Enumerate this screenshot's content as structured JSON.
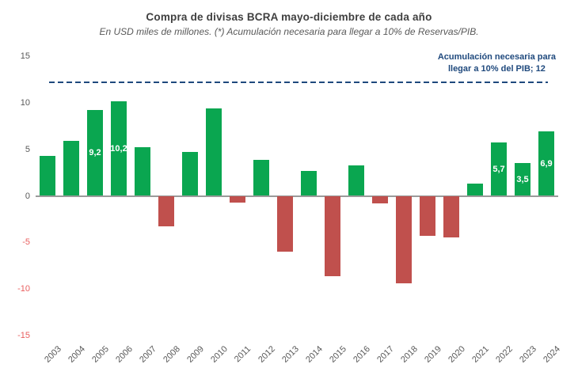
{
  "header": {
    "title": "Compra de divisas BCRA mayo-diciembre de cada año",
    "subtitle": "En USD miles de millones.  (*) Acumulación necesaria para llegar a 10% de Reservas/PIB."
  },
  "annotation": {
    "line1": "Acumulación necesaria para",
    "line2": "llegar a 10% del PIB; 12"
  },
  "chart_data": {
    "type": "bar",
    "title": "Compra de divisas BCRA mayo-diciembre de cada año",
    "subtitle": "En USD miles de millones.  (*) Acumulación necesaria para llegar a 10% de Reservas/PIB.",
    "categories": [
      "2003",
      "2004",
      "2005",
      "2006",
      "2007",
      "2008",
      "2009",
      "2010",
      "2011",
      "2012",
      "2013",
      "2014",
      "2015",
      "2016",
      "2017",
      "2018",
      "2019",
      "2020",
      "2021",
      "2022",
      "2023",
      "2024"
    ],
    "values": [
      4.3,
      5.9,
      9.2,
      10.2,
      5.2,
      -3.3,
      4.7,
      9.4,
      -0.7,
      3.9,
      -6.0,
      2.7,
      -8.6,
      3.3,
      -0.8,
      -9.4,
      -4.3,
      -4.5,
      1.3,
      5.7,
      3.5,
      6.9
    ],
    "data_labels": {
      "2005": "9,2",
      "2006": "10,2",
      "2022": "5,7",
      "2023": "3,5",
      "2024": "6,9"
    },
    "reference_line": {
      "value": 12,
      "label": "Acumulación necesaria para llegar a 10% del PIB; 12",
      "style": "dashed",
      "color": "#1F497D"
    },
    "yticks": [
      15,
      10,
      5,
      0,
      -5,
      -10,
      -15
    ],
    "ylim": [
      -15,
      15
    ],
    "xlabel": "",
    "ylabel": "",
    "grid": false,
    "legend": false,
    "positive_color": "#0AA650",
    "negative_color": "#C0504D",
    "negative_tick_color": "#E95F5F",
    "axis_color": "#9a9a9a"
  }
}
